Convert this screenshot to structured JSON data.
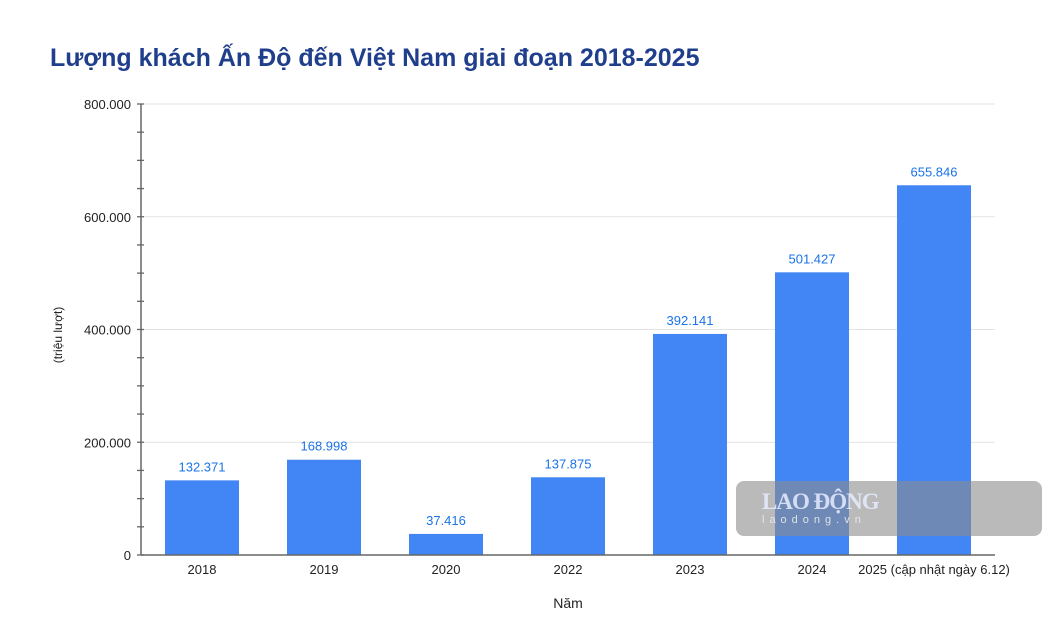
{
  "chart_data": {
    "type": "bar",
    "title": "Lượng khách Ấn Độ đến Việt Nam giai đoạn 2018-2025",
    "xlabel": "Năm",
    "ylabel": "(triệu lượt)",
    "categories": [
      "2018",
      "2019",
      "2020",
      "2022",
      "2023",
      "2024",
      "2025 (cập nhật ngày 6.12)"
    ],
    "values": [
      132371,
      168998,
      37416,
      137875,
      392141,
      501427,
      655846
    ],
    "data_labels": [
      "132.371",
      "168.998",
      "37.416",
      "137.875",
      "392.141",
      "501.427",
      "655.846"
    ],
    "ylim": [
      0,
      800000
    ],
    "yticks": [
      0,
      200000,
      400000,
      600000,
      800000
    ],
    "ytick_labels": [
      "0",
      "200.000",
      "400.000",
      "600.000",
      "800.000"
    ],
    "grid": true,
    "bar_color": "#4285f4",
    "label_color": "#1a73e8"
  },
  "watermark": {
    "logo": "LAO ĐỘNG",
    "site": "laodong.vn"
  }
}
